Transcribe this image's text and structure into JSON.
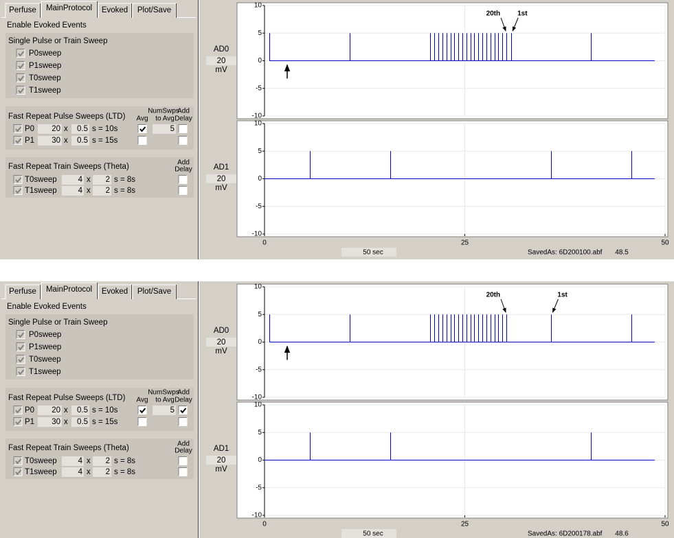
{
  "panels": [
    {
      "tabs": [
        "Perfuse",
        "MainProtocol",
        "Evoked",
        "Plot/Save"
      ],
      "active_tab": 1,
      "enable_label": "Enable Evoked Events",
      "single": {
        "title": "Single Pulse or Train Sweep",
        "items": [
          {
            "label": "P0sweep",
            "checked": true
          },
          {
            "label": "P1sweep",
            "checked": true
          },
          {
            "label": "T0sweep",
            "checked": true
          },
          {
            "label": "T1sweep",
            "checked": true
          }
        ]
      },
      "pulse": {
        "title": "Fast Repeat Pulse Sweeps (LTD)",
        "headers": {
          "numswps": "NumSwps",
          "avg": "Avg",
          "to_avg": "to Avg",
          "add": "Add",
          "delay": "Delay"
        },
        "rows": [
          {
            "label": "P0",
            "enabled": true,
            "count": 20,
            "times": "x",
            "interval": 0.5,
            "result": "s = 10s",
            "avg": true,
            "num_avg": 5,
            "add_delay": false
          },
          {
            "label": "P1",
            "enabled": true,
            "count": 30,
            "times": "x",
            "interval": 0.5,
            "result": "s = 15s",
            "avg": false,
            "add_delay": false
          }
        ]
      },
      "train": {
        "title": "Fast Repeat Train Sweeps (Theta)",
        "headers": {
          "add": "Add",
          "delay": "Delay"
        },
        "rows": [
          {
            "label": "T0sweep",
            "enabled": true,
            "count": 4,
            "times": "x",
            "interval": 2,
            "result": "s = 8s",
            "add_delay": false
          },
          {
            "label": "T1sweep",
            "enabled": true,
            "count": 4,
            "times": "x",
            "interval": 2,
            "result": "s = 8s",
            "add_delay": false
          }
        ]
      },
      "charts": [
        {
          "type": "line",
          "channel": "AD0",
          "gain": 20,
          "unit": "mV",
          "color": "#0000c8",
          "xlim": [
            0,
            50
          ],
          "ylim": [
            -10,
            10
          ],
          "xticks": [
            0,
            25,
            50
          ],
          "yticks": [
            10,
            5,
            0,
            -5,
            -10
          ],
          "grid": true,
          "baseline": {
            "x": [
              0.6,
              48.7
            ],
            "values": [
              0,
              0
            ]
          },
          "pulses": {
            "x": [
              0.6,
              10.6,
              20.7,
              21.2,
              21.7,
              22.2,
              22.7,
              23.2,
              23.7,
              24.2,
              24.7,
              25.2,
              25.7,
              26.2,
              26.7,
              27.2,
              27.7,
              28.2,
              28.7,
              29.2,
              29.7,
              30.2,
              30.8,
              40.7
            ],
            "values": [
              5,
              5,
              5,
              5,
              5,
              5,
              5,
              5,
              5,
              5,
              5,
              5,
              5,
              5,
              5,
              5,
              5,
              5,
              5,
              5,
              5,
              5,
              5,
              5
            ]
          },
          "annotations": [
            {
              "text": "20th",
              "x": 30.2
            },
            {
              "text": "1st",
              "x": 30.8
            }
          ]
        },
        {
          "type": "line",
          "channel": "AD1",
          "gain": 20,
          "unit": "mV",
          "color": "#0000c8",
          "xlim": [
            0,
            50
          ],
          "ylim": [
            -10,
            10
          ],
          "xticks": [
            0,
            25,
            50
          ],
          "yticks": [
            10,
            5,
            0,
            -5,
            -10
          ],
          "grid": true,
          "baseline": {
            "x": [
              0,
              48.7
            ],
            "values": [
              0,
              0
            ]
          },
          "pulses": {
            "x": [
              5.7,
              15.7,
              35.8,
              45.8
            ],
            "values": [
              5,
              5,
              5,
              5
            ]
          }
        }
      ],
      "time_window": "50 sec",
      "saved_as": "SavedAs: 6D200100.abf",
      "readout": 48.5
    },
    {
      "tabs": [
        "Perfuse",
        "MainProtocol",
        "Evoked",
        "Plot/Save"
      ],
      "active_tab": 1,
      "enable_label": "Enable Evoked Events",
      "single": {
        "title": "Single Pulse or Train Sweep",
        "items": [
          {
            "label": "P0sweep",
            "checked": true
          },
          {
            "label": "P1sweep",
            "checked": true
          },
          {
            "label": "T0sweep",
            "checked": true
          },
          {
            "label": "T1sweep",
            "checked": true
          }
        ]
      },
      "pulse": {
        "title": "Fast Repeat Pulse Sweeps (LTD)",
        "headers": {
          "numswps": "NumSwps",
          "avg": "Avg",
          "to_avg": "to Avg",
          "add": "Add",
          "delay": "Delay"
        },
        "rows": [
          {
            "label": "P0",
            "enabled": true,
            "count": 20,
            "times": "x",
            "interval": 0.5,
            "result": "s = 10s",
            "avg": true,
            "num_avg": 5,
            "add_delay": true
          },
          {
            "label": "P1",
            "enabled": true,
            "count": 30,
            "times": "x",
            "interval": 0.5,
            "result": "s = 15s",
            "avg": false,
            "add_delay": false
          }
        ]
      },
      "train": {
        "title": "Fast Repeat Train Sweeps (Theta)",
        "headers": {
          "add": "Add",
          "delay": "Delay"
        },
        "rows": [
          {
            "label": "T0sweep",
            "enabled": true,
            "count": 4,
            "times": "x",
            "interval": 2,
            "result": "s = 8s",
            "add_delay": false
          },
          {
            "label": "T1sweep",
            "enabled": true,
            "count": 4,
            "times": "x",
            "interval": 2,
            "result": "s = 8s",
            "add_delay": false
          }
        ]
      },
      "charts": [
        {
          "type": "line",
          "channel": "AD0",
          "gain": 20,
          "unit": "mV",
          "color": "#0000c8",
          "xlim": [
            0,
            50
          ],
          "ylim": [
            -10,
            10
          ],
          "xticks": [
            0,
            25,
            50
          ],
          "yticks": [
            10,
            5,
            0,
            -5,
            -10
          ],
          "grid": true,
          "baseline": {
            "x": [
              0.6,
              48.7
            ],
            "values": [
              0,
              0
            ]
          },
          "pulses": {
            "x": [
              0.6,
              10.6,
              20.7,
              21.2,
              21.7,
              22.2,
              22.7,
              23.2,
              23.7,
              24.2,
              24.7,
              25.2,
              25.7,
              26.2,
              26.7,
              27.2,
              27.7,
              28.2,
              28.7,
              29.2,
              29.7,
              30.2,
              35.8,
              45.8
            ],
            "values": [
              5,
              5,
              5,
              5,
              5,
              5,
              5,
              5,
              5,
              5,
              5,
              5,
              5,
              5,
              5,
              5,
              5,
              5,
              5,
              5,
              5,
              5,
              5,
              5
            ]
          },
          "annotations": [
            {
              "text": "20th",
              "x": 30.2
            },
            {
              "text": "1st",
              "x": 35.8
            }
          ]
        },
        {
          "type": "line",
          "channel": "AD1",
          "gain": 20,
          "unit": "mV",
          "color": "#0000c8",
          "xlim": [
            0,
            50
          ],
          "ylim": [
            -10,
            10
          ],
          "xticks": [
            0,
            25,
            50
          ],
          "yticks": [
            10,
            5,
            0,
            -5,
            -10
          ],
          "grid": true,
          "baseline": {
            "x": [
              0,
              48.7
            ],
            "values": [
              0,
              0
            ]
          },
          "pulses": {
            "x": [
              5.7,
              15.7,
              40.7
            ],
            "values": [
              5,
              5,
              5
            ]
          }
        }
      ],
      "time_window": "50 sec",
      "saved_as": "SavedAs: 6D200178.abf",
      "readout": 48.6
    }
  ]
}
